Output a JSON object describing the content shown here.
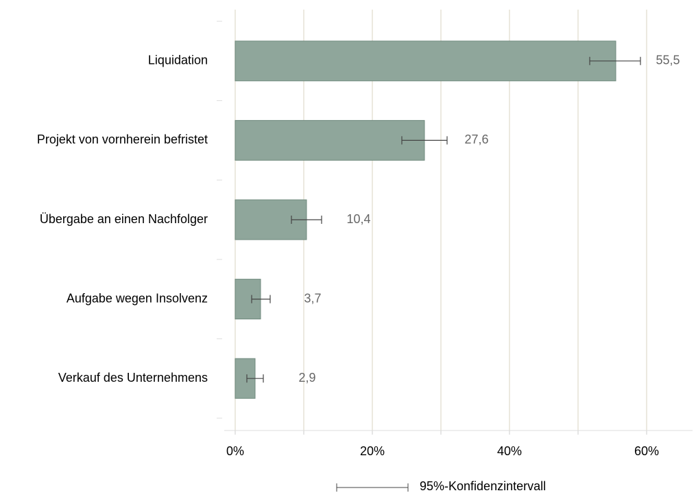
{
  "chart_data": {
    "type": "hbar",
    "categories": [
      "Liquidation",
      "Projekt von vornherein befristet",
      "Übergabe an einen Nachfolger",
      "Aufgabe wegen Insolvenz",
      "Verkauf des Unternehmens"
    ],
    "values": [
      55.5,
      27.6,
      10.4,
      3.7,
      2.9
    ],
    "value_labels": [
      "55,5",
      "27,6",
      "10,4",
      "3,7",
      "2,9"
    ],
    "ci_low": [
      51.7,
      24.3,
      8.2,
      2.4,
      1.7
    ],
    "ci_high": [
      59.1,
      30.9,
      12.6,
      5.1,
      4.1
    ],
    "color": "#8fa69b",
    "xlim": [
      -1.6,
      66.7
    ],
    "xticks": [
      {
        "value": 0,
        "label": "0%"
      },
      {
        "value": 20,
        "label": "20%"
      },
      {
        "value": 40,
        "label": "40%"
      },
      {
        "value": 60,
        "label": "60%"
      }
    ],
    "xgrid": [
      0,
      10,
      20,
      30,
      40,
      50,
      60
    ],
    "grid": true,
    "legend_label": "95%-Konfidenzintervall"
  }
}
